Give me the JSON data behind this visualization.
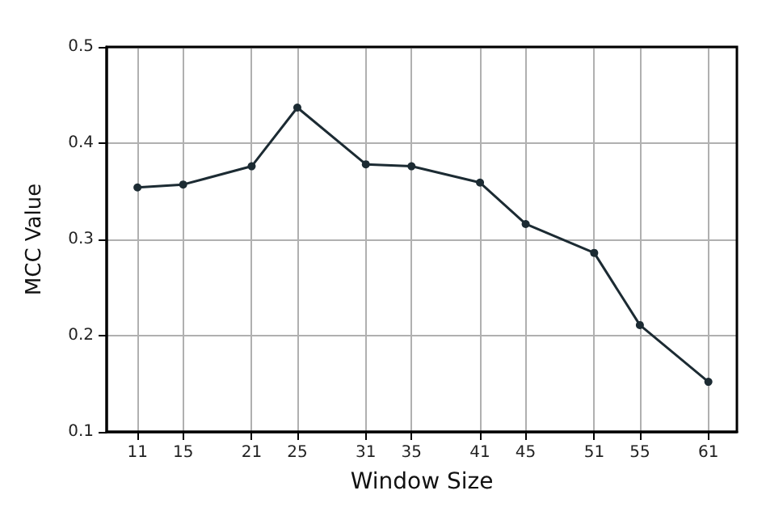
{
  "chart_data": {
    "type": "line",
    "xlabel": "Window Size",
    "ylabel": "MCC Value",
    "x": [
      11,
      15,
      21,
      25,
      31,
      35,
      41,
      45,
      51,
      55,
      61
    ],
    "series": [
      {
        "color": "#1c2b33",
        "values": [
          0.354,
          0.357,
          0.376,
          0.437,
          0.378,
          0.376,
          0.359,
          0.316,
          0.286,
          0.211,
          0.152
        ]
      }
    ],
    "xlim": [
      8.3,
      63.5
    ],
    "xticks": [
      11,
      15,
      21,
      25,
      31,
      35,
      41,
      45,
      51,
      55,
      61
    ],
    "ylim": [
      0.1,
      0.5
    ],
    "yticks": [
      0.1,
      0.2,
      0.3,
      0.4,
      0.5
    ],
    "grid": true,
    "marker": "circle",
    "line_style": "solid"
  }
}
